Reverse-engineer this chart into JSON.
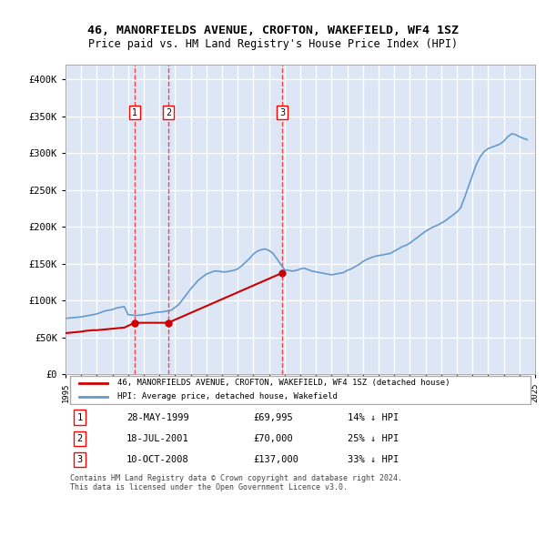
{
  "title": "46, MANORFIELDS AVENUE, CROFTON, WAKEFIELD, WF4 1SZ",
  "subtitle": "Price paid vs. HM Land Registry's House Price Index (HPI)",
  "background_color": "#dce6f5",
  "plot_bg_color": "#dce6f5",
  "hpi_color": "#6699cc",
  "price_color": "#cc0000",
  "ylim": [
    0,
    420000
  ],
  "yticks": [
    0,
    50000,
    100000,
    150000,
    200000,
    250000,
    300000,
    350000,
    400000
  ],
  "ytick_labels": [
    "£0",
    "£50K",
    "£100K",
    "£150K",
    "£200K",
    "£250K",
    "£300K",
    "£350K",
    "£400K"
  ],
  "sale_dates": [
    "1999-05-28",
    "2001-07-18",
    "2008-10-10"
  ],
  "sale_prices": [
    69995,
    70000,
    137000
  ],
  "sale_labels": [
    "1",
    "2",
    "3"
  ],
  "legend_entries": [
    "46, MANORFIELDS AVENUE, CROFTON, WAKEFIELD, WF4 1SZ (detached house)",
    "HPI: Average price, detached house, Wakefield"
  ],
  "table_rows": [
    {
      "num": "1",
      "date": "28-MAY-1999",
      "price": "£69,995",
      "hpi": "14% ↓ HPI"
    },
    {
      "num": "2",
      "date": "18-JUL-2001",
      "price": "£70,000",
      "hpi": "25% ↓ HPI"
    },
    {
      "num": "3",
      "date": "10-OCT-2008",
      "price": "£137,000",
      "hpi": "33% ↓ HPI"
    }
  ],
  "footer": "Contains HM Land Registry data © Crown copyright and database right 2024.\nThis data is licensed under the Open Government Licence v3.0.",
  "hpi_x": [
    1995,
    1995.25,
    1995.5,
    1995.75,
    1996,
    1996.25,
    1996.5,
    1996.75,
    1997,
    1997.25,
    1997.5,
    1997.75,
    1998,
    1998.25,
    1998.5,
    1998.75,
    1999,
    1999.25,
    1999.5,
    1999.75,
    2000,
    2000.25,
    2000.5,
    2000.75,
    2001,
    2001.25,
    2001.5,
    2001.75,
    2002,
    2002.25,
    2002.5,
    2002.75,
    2003,
    2003.25,
    2003.5,
    2003.75,
    2004,
    2004.25,
    2004.5,
    2004.75,
    2005,
    2005.25,
    2005.5,
    2005.75,
    2006,
    2006.25,
    2006.5,
    2006.75,
    2007,
    2007.25,
    2007.5,
    2007.75,
    2008,
    2008.25,
    2008.5,
    2008.75,
    2009,
    2009.25,
    2009.5,
    2009.75,
    2010,
    2010.25,
    2010.5,
    2010.75,
    2011,
    2011.25,
    2011.5,
    2011.75,
    2012,
    2012.25,
    2012.5,
    2012.75,
    2013,
    2013.25,
    2013.5,
    2013.75,
    2014,
    2014.25,
    2014.5,
    2014.75,
    2015,
    2015.25,
    2015.5,
    2015.75,
    2016,
    2016.25,
    2016.5,
    2016.75,
    2017,
    2017.25,
    2017.5,
    2017.75,
    2018,
    2018.25,
    2018.5,
    2018.75,
    2019,
    2019.25,
    2019.5,
    2019.75,
    2020,
    2020.25,
    2020.5,
    2020.75,
    2021,
    2021.25,
    2021.5,
    2021.75,
    2022,
    2022.25,
    2022.5,
    2022.75,
    2023,
    2023.25,
    2023.5,
    2023.75,
    2024,
    2024.25,
    2024.5
  ],
  "hpi_y": [
    76000,
    76500,
    77000,
    77500,
    78000,
    79000,
    80000,
    81000,
    82000,
    84000,
    86000,
    87000,
    88000,
    90000,
    91000,
    92000,
    81000,
    80500,
    80000,
    80500,
    81000,
    82000,
    83000,
    84000,
    84500,
    85000,
    86000,
    87000,
    91000,
    95000,
    102000,
    109000,
    116000,
    122000,
    128000,
    132000,
    136000,
    138000,
    140000,
    140000,
    139000,
    139000,
    140000,
    141000,
    143000,
    147000,
    152000,
    157000,
    163000,
    167000,
    169000,
    170000,
    168000,
    164000,
    157000,
    149000,
    142000,
    141000,
    140000,
    141000,
    143000,
    144000,
    142000,
    140000,
    139000,
    138000,
    137000,
    136000,
    135000,
    136000,
    137000,
    138000,
    141000,
    143000,
    146000,
    149000,
    153000,
    156000,
    158000,
    160000,
    161000,
    162000,
    163000,
    164000,
    167000,
    170000,
    173000,
    175000,
    178000,
    182000,
    186000,
    190000,
    194000,
    197000,
    200000,
    202000,
    205000,
    208000,
    212000,
    216000,
    220000,
    226000,
    240000,
    255000,
    270000,
    285000,
    295000,
    302000,
    306000,
    308000,
    310000,
    312000,
    316000,
    322000,
    326000,
    325000,
    322000,
    320000,
    318000
  ],
  "price_x": [
    1995.0,
    1995.25,
    1995.5,
    1995.75,
    1996,
    1996.25,
    1996.5,
    1996.75,
    1997,
    1997.25,
    1997.5,
    1997.75,
    1998,
    1998.25,
    1998.5,
    1998.75,
    1999.42,
    2001.55,
    2008.78
  ],
  "price_y": [
    56000,
    56500,
    57000,
    57500,
    58000,
    59000,
    59500,
    60000,
    60000,
    60500,
    61000,
    61500,
    62000,
    62500,
    63000,
    63500,
    69995,
    70000,
    137000
  ]
}
